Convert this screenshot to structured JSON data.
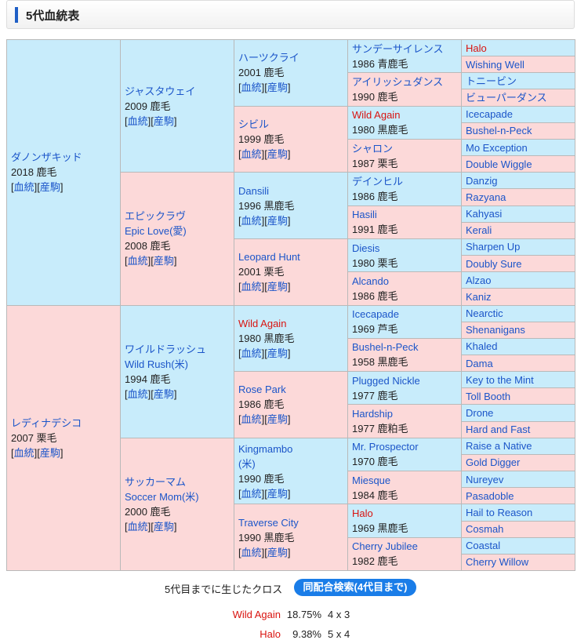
{
  "header": {
    "title": "5代血統表"
  },
  "link_open": "[",
  "link_close": "]",
  "links": [
    "血統",
    "産駒"
  ],
  "generations": [
    [
      {
        "name": "ダノンザキッド",
        "info": "2018 鹿毛"
      },
      {
        "name": "レディナデシコ",
        "info": "2007 栗毛"
      }
    ],
    [
      {
        "name": "ジャスタウェイ",
        "info": "2009 鹿毛"
      },
      {
        "name": "エピックラヴ",
        "name2": "Epic Love(愛)",
        "info": "2008 鹿毛"
      },
      {
        "name": "ワイルドラッシュ",
        "name2": "Wild Rush(米)",
        "info": "1994 鹿毛"
      },
      {
        "name": "サッカーマム",
        "name2": "Soccer Mom(米)",
        "info": "2000 鹿毛"
      }
    ],
    [
      {
        "name": "ハーツクライ",
        "info": "2001 鹿毛"
      },
      {
        "name": "シビル",
        "info": "1999 鹿毛"
      },
      {
        "name": "Dansili",
        "info": "1996 黒鹿毛"
      },
      {
        "name": "Leopard Hunt",
        "info": "2001 栗毛"
      },
      {
        "name": "Wild Again",
        "info": "1980 黒鹿毛",
        "highlight": true
      },
      {
        "name": "Rose Park",
        "info": "1986 鹿毛"
      },
      {
        "name": "Kingmambo",
        "name2": "(米)",
        "info": "1990 鹿毛"
      },
      {
        "name": "Traverse City",
        "info": "1990 黒鹿毛"
      }
    ],
    [
      {
        "name": "サンデーサイレンス",
        "info": "1986 青鹿毛"
      },
      {
        "name": "アイリッシュダンス",
        "info": "1990 鹿毛"
      },
      {
        "name": "Wild Again",
        "info": "1980 黒鹿毛",
        "highlight": true
      },
      {
        "name": "シャロン",
        "info": "1987 栗毛"
      },
      {
        "name": "デインヒル",
        "info": "1986 鹿毛"
      },
      {
        "name": "Hasili",
        "info": "1991 鹿毛"
      },
      {
        "name": "Diesis",
        "info": "1980 栗毛"
      },
      {
        "name": "Alcando",
        "info": "1986 鹿毛"
      },
      {
        "name": "Icecapade",
        "info": "1969 芦毛"
      },
      {
        "name": "Bushel-n-Peck",
        "info": "1958 黒鹿毛"
      },
      {
        "name": "Plugged Nickle",
        "info": "1977 鹿毛"
      },
      {
        "name": "Hardship",
        "info": "1977 鹿粕毛"
      },
      {
        "name": "Mr. Prospector",
        "info": "1970 鹿毛"
      },
      {
        "name": "Miesque",
        "info": "1984 鹿毛"
      },
      {
        "name": "Halo",
        "info": "1969 黒鹿毛",
        "highlight": true
      },
      {
        "name": "Cherry Jubilee",
        "info": "1982 鹿毛"
      }
    ],
    [
      {
        "name": "Halo",
        "highlight": true
      },
      {
        "name": "Wishing Well"
      },
      {
        "name": "トニービン"
      },
      {
        "name": "ビューパーダンス"
      },
      {
        "name": "Icecapade"
      },
      {
        "name": "Bushel-n-Peck"
      },
      {
        "name": "Mo Exception"
      },
      {
        "name": "Double Wiggle"
      },
      {
        "name": "Danzig"
      },
      {
        "name": "Razyana"
      },
      {
        "name": "Kahyasi"
      },
      {
        "name": "Kerali"
      },
      {
        "name": "Sharpen Up"
      },
      {
        "name": "Doubly Sure"
      },
      {
        "name": "Alzao"
      },
      {
        "name": "Kaniz"
      },
      {
        "name": "Nearctic"
      },
      {
        "name": "Shenanigans"
      },
      {
        "name": "Khaled"
      },
      {
        "name": "Dama"
      },
      {
        "name": "Key to the Mint"
      },
      {
        "name": "Toll Booth"
      },
      {
        "name": "Drone"
      },
      {
        "name": "Hard and Fast"
      },
      {
        "name": "Raise a Native"
      },
      {
        "name": "Gold Digger"
      },
      {
        "name": "Nureyev"
      },
      {
        "name": "Pasadoble"
      },
      {
        "name": "Hail to Reason"
      },
      {
        "name": "Cosmah"
      },
      {
        "name": "Coastal"
      },
      {
        "name": "Cherry Willow"
      }
    ]
  ],
  "footer": {
    "cross_label": "5代目までに生じたクロス",
    "button": "同配合検索(4代目まで)",
    "crosses": [
      {
        "name": "Wild Again",
        "percent": "18.75%",
        "gens": "4 x 3"
      },
      {
        "name": "Halo",
        "percent": "9.38%",
        "gens": "5 x 4"
      }
    ]
  }
}
